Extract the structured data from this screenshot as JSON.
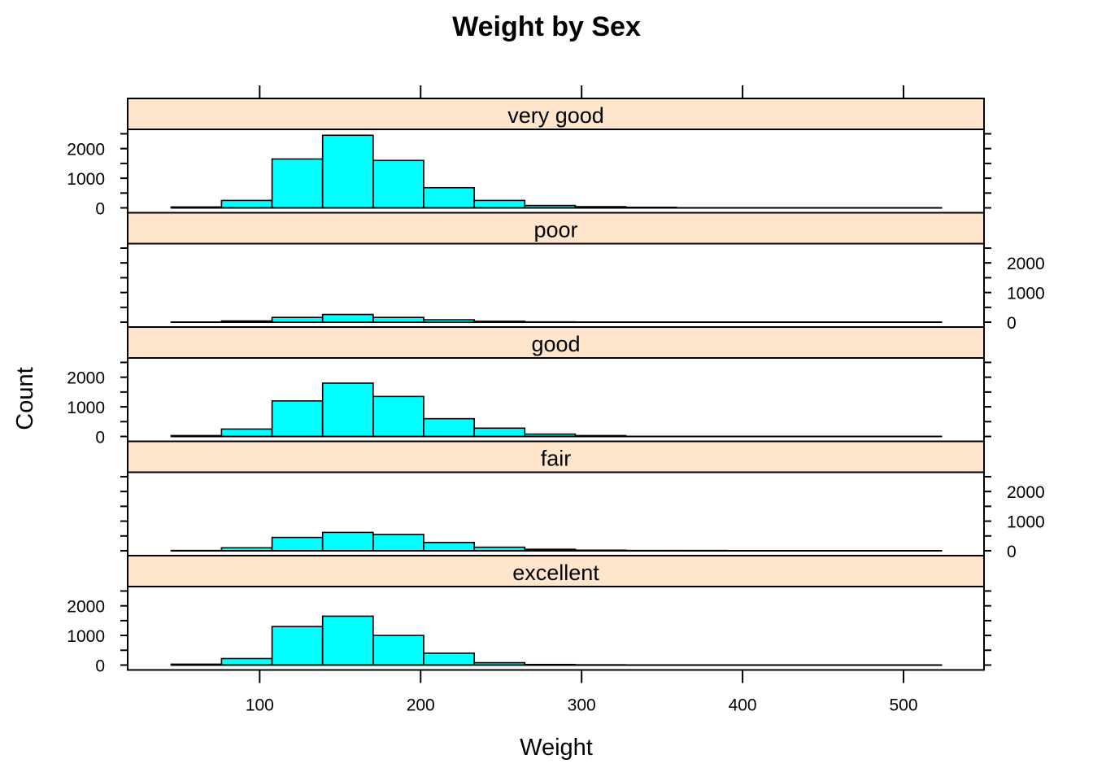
{
  "chart_data": {
    "type": "bar",
    "title": "Weight by Sex",
    "xlabel": "Weight",
    "ylabel": "Count",
    "xlim": [
      18,
      550
    ],
    "ylim": [
      0,
      2650
    ],
    "x_ticks": [
      100,
      200,
      300,
      400,
      500
    ],
    "y_ticks": [
      0,
      1000,
      2000
    ],
    "bin_edges": [
      45,
      76.3,
      107.7,
      139.1,
      170.5,
      201.9,
      233.3,
      264.7,
      296.1,
      327.5,
      358.9,
      390.3,
      421.7,
      453.1,
      484.5,
      515.9,
      524
    ],
    "panels": [
      {
        "strip": "very good",
        "counts": [
          30,
          250,
          1650,
          2450,
          1600,
          680,
          250,
          80,
          40,
          20,
          0,
          0,
          0,
          0,
          0,
          0
        ]
      },
      {
        "strip": "poor",
        "counts": [
          5,
          40,
          160,
          260,
          160,
          80,
          30,
          10,
          0,
          0,
          0,
          0,
          0,
          0,
          0,
          0
        ]
      },
      {
        "strip": "good",
        "counts": [
          30,
          250,
          1200,
          1800,
          1350,
          600,
          280,
          80,
          30,
          0,
          0,
          0,
          0,
          0,
          0,
          0
        ]
      },
      {
        "strip": "fair",
        "counts": [
          10,
          100,
          450,
          620,
          550,
          280,
          120,
          50,
          20,
          10,
          10,
          0,
          0,
          0,
          0,
          0
        ]
      },
      {
        "strip": "excellent",
        "counts": [
          30,
          220,
          1300,
          1650,
          1000,
          400,
          80,
          20,
          10,
          0,
          0,
          0,
          0,
          0,
          0,
          0
        ]
      }
    ]
  }
}
